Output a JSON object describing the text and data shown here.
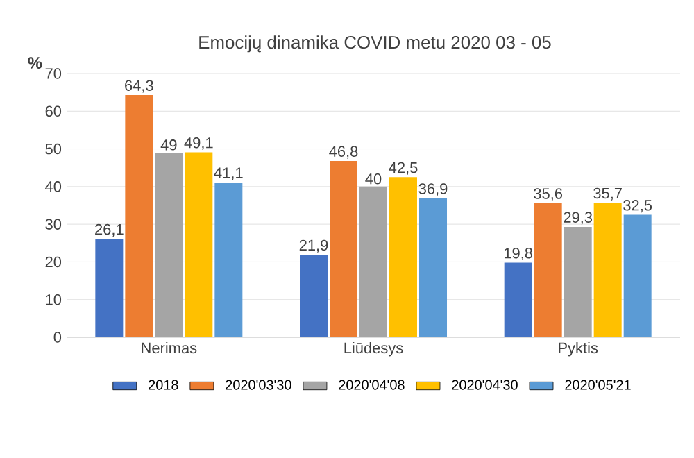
{
  "chart_data": {
    "type": "bar",
    "title": "Emocijų dinamika COVID metu 2020 03 - 05",
    "ylabel": "%",
    "categories": [
      "Nerimas",
      "Liūdesys",
      "Pyktis"
    ],
    "series": [
      {
        "name": "2018",
        "color": "#4472c4",
        "values": [
          26.1,
          21.9,
          19.8
        ],
        "value_labels": [
          "26,1",
          "21,9",
          "19,8"
        ]
      },
      {
        "name": "2020'03'30",
        "color": "#ed7d31",
        "values": [
          64.3,
          46.8,
          35.6
        ],
        "value_labels": [
          "64,3",
          "46,8",
          "35,6"
        ]
      },
      {
        "name": "2020'04'08",
        "color": "#a5a5a5",
        "values": [
          49,
          40,
          29.3
        ],
        "value_labels": [
          "49",
          "40",
          "29,3"
        ]
      },
      {
        "name": "2020'04'30",
        "color": "#ffc000",
        "values": [
          49.1,
          42.5,
          35.7
        ],
        "value_labels": [
          "49,1",
          "42,5",
          "35,7"
        ]
      },
      {
        "name": "2020'05'21",
        "color": "#5b9bd5",
        "values": [
          41.1,
          36.9,
          32.5
        ],
        "value_labels": [
          "41,1",
          "36,9",
          "32,5"
        ]
      }
    ],
    "ylim": [
      0,
      70
    ],
    "yticks": [
      0,
      10,
      20,
      30,
      40,
      50,
      60,
      70
    ],
    "grid": "y",
    "legend": "bottom"
  }
}
